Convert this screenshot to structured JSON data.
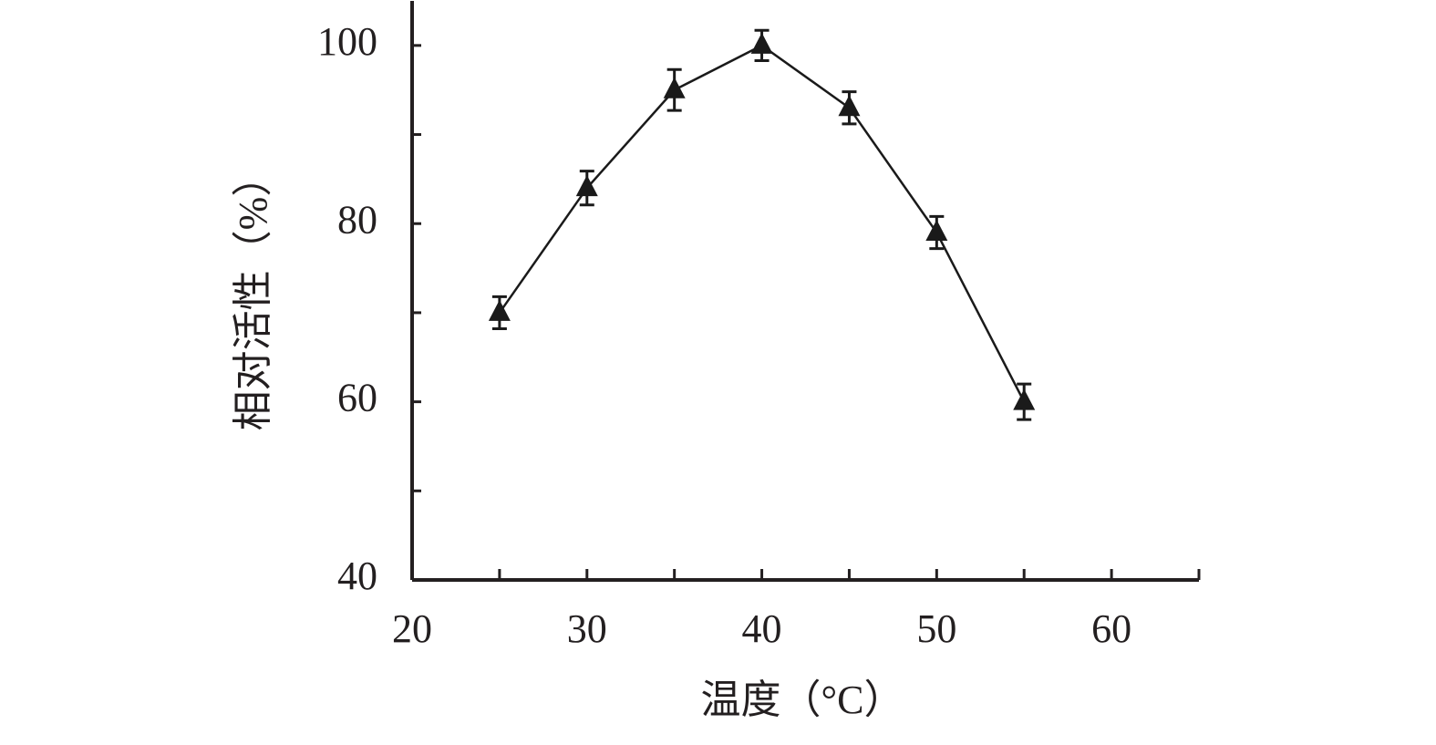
{
  "chart_data": {
    "type": "line",
    "x_label": "温度（°C）",
    "y_label": "相对活性（%）",
    "x": [
      25,
      30,
      35,
      40,
      45,
      50,
      55
    ],
    "series": [
      {
        "color": "#1a1a1a",
        "values": [
          70,
          84,
          95,
          100,
          93,
          79,
          60
        ],
        "errors": [
          1.8,
          1.9,
          2.3,
          1.7,
          1.8,
          1.8,
          2.0
        ]
      }
    ],
    "xlim": [
      20,
      65
    ],
    "xticks": [
      20,
      30,
      40,
      50,
      60
    ],
    "xminorticks": [
      25,
      35,
      45,
      55,
      65
    ],
    "ylim": [
      40,
      105
    ],
    "yticks": [
      40,
      60,
      80,
      100
    ],
    "yminorticks": [
      50,
      70,
      90
    ],
    "marker": "triangle"
  }
}
